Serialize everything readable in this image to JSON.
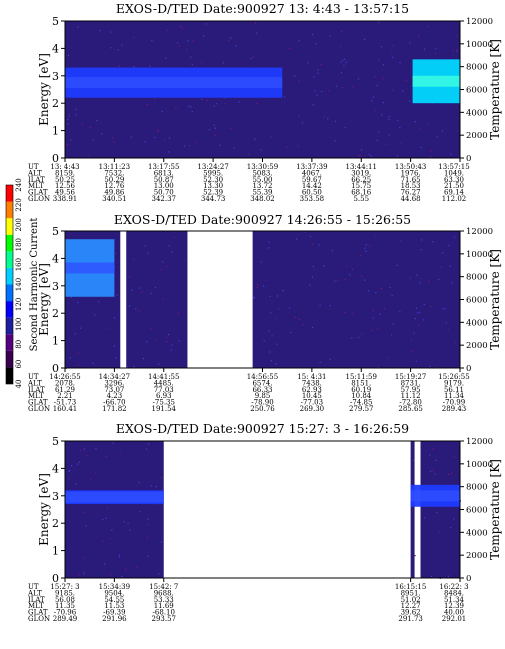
{
  "chart_data": [
    {
      "type": "heatmap",
      "title": "EXOS-D/TED  Date:900927  13: 4:43 - 13:57:15",
      "ylabel": "Energy [eV]",
      "ylabel_right": "Temperature [K]",
      "ylim": [
        0,
        5
      ],
      "yticks": [
        "0",
        "1",
        "2",
        "3",
        "4",
        "5"
      ],
      "ylim_right": [
        0,
        12000
      ],
      "yticks_right": [
        "0",
        "2000",
        "4000",
        "6000",
        "8000",
        "10000",
        "12000"
      ],
      "x": [
        0,
        0.125,
        0.25,
        0.375,
        0.5,
        0.625,
        0.75,
        0.875,
        1.0
      ],
      "x_domain": [
        0,
        1
      ],
      "data_intervals": [
        [
          0,
          1
        ]
      ],
      "band": [
        {
          "x0": 0.0,
          "x1": 0.55,
          "y0": 2.2,
          "y1": 3.3,
          "level": "blue"
        },
        {
          "x0": 0.88,
          "x1": 1.0,
          "y0": 2.0,
          "y1": 3.6,
          "level": "cyan"
        }
      ],
      "ephemeris": [
        {
          "label": "UT",
          "values": [
            "13: 4:43",
            "13:11:23",
            "13:17:55",
            "13:24:27",
            "13:30:59",
            "13:37:39",
            "13:44:11",
            "13:50:43",
            "13:57:15"
          ]
        },
        {
          "label": "ALT",
          "values": [
            "8159.",
            "7532.",
            "6813.",
            "5995.",
            "5083.",
            "4067.",
            "3019.",
            "1976.",
            "1049."
          ]
        },
        {
          "label": "ILAT",
          "values": [
            "50.25",
            "50.29",
            "50.87",
            "52.30",
            "55.00",
            "59.67",
            "66.25",
            "71.65",
            "63.30"
          ]
        },
        {
          "label": "MLT",
          "values": [
            "12.56",
            "12.76",
            "13.00",
            "13.30",
            "13.72",
            "14.42",
            "15.75",
            "18.53",
            "21.50"
          ]
        },
        {
          "label": "GLAT",
          "values": [
            "49.56",
            "49.86",
            "50.70",
            "52.39",
            "55.39",
            "60.50",
            "68.16",
            "76.27",
            "69.14"
          ]
        },
        {
          "label": "GLON",
          "values": [
            "338.91",
            "340.51",
            "342.37",
            "344.73",
            "348.02",
            "353.58",
            "5.55",
            "44.68",
            "112.02"
          ]
        }
      ]
    },
    {
      "type": "heatmap",
      "title": "EXOS-D/TED  Date:900927  14:26:55 - 15:26:55",
      "ylabel": "Energy [eV]",
      "ylabel_right": "Temperature [K]",
      "ylim": [
        0,
        5
      ],
      "yticks": [
        "0",
        "1",
        "2",
        "3",
        "4",
        "5"
      ],
      "ylim_right": [
        0,
        12000
      ],
      "yticks_right": [
        "0",
        "2000",
        "4000",
        "6000",
        "8000",
        "10000",
        "12000"
      ],
      "x": [
        0,
        0.125,
        0.25,
        0.5,
        0.625,
        0.75,
        0.875,
        1.0
      ],
      "x_domain": [
        0,
        1
      ],
      "data_intervals": [
        [
          0,
          0.14
        ],
        [
          0.155,
          0.31
        ],
        [
          0.475,
          1.0
        ]
      ],
      "band": [
        {
          "x0": 0.0,
          "x1": 0.125,
          "y0": 2.6,
          "y1": 4.7,
          "level": "mixed"
        }
      ],
      "colorbar": {
        "label": "Second Harmonic Current",
        "ticks": [
          "40",
          "60",
          "80",
          "100",
          "120",
          "140",
          "160",
          "180",
          "200",
          "220",
          "240"
        ],
        "colors": [
          "#000000",
          "#3a0050",
          "#55007f",
          "#1e1ea0",
          "#0000ff",
          "#0070ff",
          "#00d0ff",
          "#00ff90",
          "#00ff00",
          "#ffff00",
          "#ff8000",
          "#ff0000"
        ]
      },
      "ephemeris": [
        {
          "label": "UT",
          "values": [
            "14:26:55",
            "14:34:27",
            "14:41:55",
            "14:56:55",
            "15: 4:31",
            "15:11:59",
            "15:19:27",
            "15:26:55"
          ]
        },
        {
          "label": "ALT",
          "values": [
            "2078.",
            "3296.",
            "4485.",
            "6574.",
            "7438.",
            "8151.",
            "8731.",
            "9179."
          ]
        },
        {
          "label": "ILAT",
          "values": [
            "61.29",
            "73.07",
            "77.03",
            "66.33",
            "62.93",
            "60.19",
            "57.95",
            "56.11"
          ]
        },
        {
          "label": "MLT",
          "values": [
            "2.21",
            "4.23",
            "6.93",
            "9.85",
            "10.45",
            "10.84",
            "11.12",
            "11.34"
          ]
        },
        {
          "label": "GLAT",
          "values": [
            "-51.73",
            "-66.70",
            "-75.35",
            "-78.90",
            "-77.03",
            "-74.85",
            "-72.80",
            "-70.99"
          ]
        },
        {
          "label": "GLON",
          "values": [
            "160.41",
            "171.82",
            "191.54",
            "250.76",
            "269.30",
            "279.57",
            "285.65",
            "289.43"
          ]
        }
      ]
    },
    {
      "type": "heatmap",
      "title": "EXOS-D/TED  Date:900927  15:27: 3 - 16:26:59",
      "ylabel": "Energy [eV]",
      "ylabel_right": "Temperature [K]",
      "ylim": [
        0,
        5
      ],
      "yticks": [
        "0",
        "1",
        "2",
        "3",
        "4",
        "5"
      ],
      "ylim_right": [
        0,
        12000
      ],
      "yticks_right": [
        "0",
        "2000",
        "4000",
        "6000",
        "8000",
        "10000",
        "12000"
      ],
      "x": [
        0,
        0.125,
        0.25,
        0.875,
        1.0
      ],
      "x_domain": [
        0,
        1
      ],
      "data_intervals": [
        [
          0,
          0.25
        ],
        [
          0.875,
          0.885
        ],
        [
          0.9,
          1.0
        ]
      ],
      "band": [
        {
          "x0": 0.0,
          "x1": 0.25,
          "y0": 2.7,
          "y1": 3.2,
          "level": "blue"
        },
        {
          "x0": 0.875,
          "x1": 1.0,
          "y0": 2.6,
          "y1": 3.4,
          "level": "blue"
        }
      ],
      "ephemeris": [
        {
          "label": "UT",
          "values": [
            "15:27: 3",
            "15:34:39",
            "15:42: 7",
            "16:15:15",
            "16:22: 3"
          ]
        },
        {
          "label": "ALT",
          "values": [
            "9185.",
            "9504.",
            "9688.",
            "8951.",
            "8484."
          ]
        },
        {
          "label": "ILAT",
          "values": [
            "56.08",
            "54.55",
            "53.33",
            "51.02",
            "51.34"
          ]
        },
        {
          "label": "MLT",
          "values": [
            "11.35",
            "11.53",
            "11.69",
            "12.27",
            "12.39"
          ]
        },
        {
          "label": "GLAT",
          "values": [
            "-70.96",
            "-69.39",
            "-68.10",
            "39.62",
            "40.00"
          ]
        },
        {
          "label": "GLON",
          "values": [
            "289.49",
            "291.96",
            "293.57",
            "291.73",
            "292.01"
          ]
        }
      ]
    }
  ]
}
